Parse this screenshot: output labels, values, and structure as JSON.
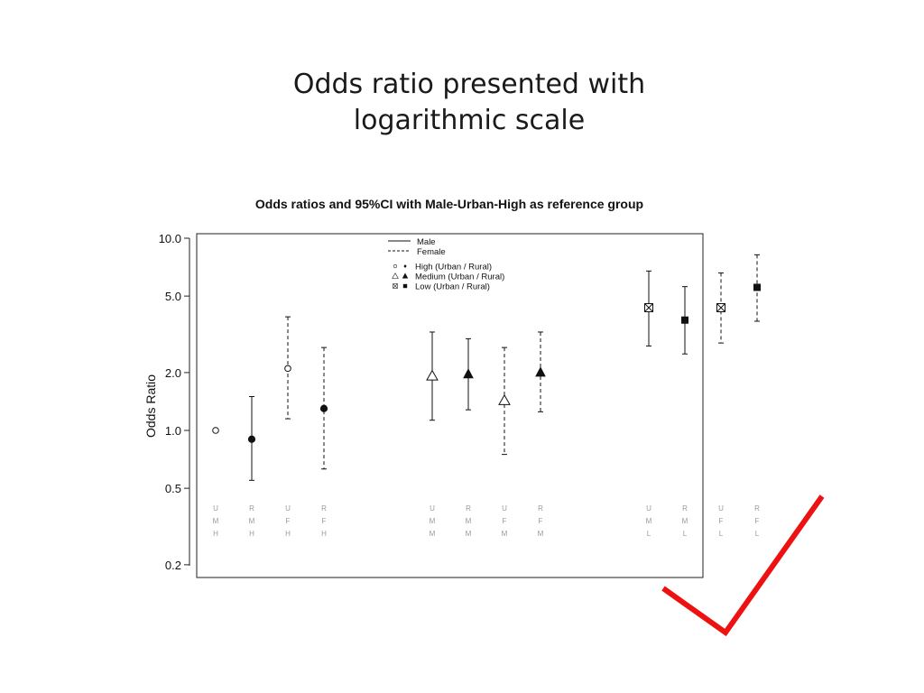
{
  "slide": {
    "title_line1": "Odds ratio presented with",
    "title_line2": "logarithmic scale"
  },
  "chart_data": {
    "type": "scatter",
    "title": "Odds ratios and 95%CI with Male-Urban-High as reference group",
    "xlabel": "",
    "ylabel": "Odds Ratio",
    "yscale": "log",
    "ylim": [
      0.2,
      10.0
    ],
    "yticks": [
      {
        "value": 10,
        "label": "10.0"
      },
      {
        "value": 5,
        "label": "5.0"
      },
      {
        "value": 2,
        "label": "2.0"
      },
      {
        "value": 1,
        "label": "1.0"
      },
      {
        "value": 0.5,
        "label": "0.5"
      },
      {
        "value": 0.2,
        "label": "0.2"
      }
    ],
    "grid": false,
    "legend": {
      "position": "top-center",
      "line_styles": [
        {
          "label": "Male",
          "style": "solid"
        },
        {
          "label": "Female",
          "style": "dashed"
        }
      ],
      "markers": [
        {
          "label": "High (Urban / Rural)",
          "urban": "circle-open",
          "rural": "diamond-filled"
        },
        {
          "label": "Medium (Urban / Rural)",
          "urban": "triangle-open",
          "rural": "triangle-filled"
        },
        {
          "label": "Low (Urban / Rural)",
          "urban": "square-x",
          "rural": "square-filled"
        }
      ]
    },
    "points": [
      {
        "codes": [
          "U",
          "M",
          "H"
        ],
        "group": 0,
        "or": 1.0,
        "lower": null,
        "upper": null,
        "line": "solid",
        "marker": "circle-open"
      },
      {
        "codes": [
          "R",
          "M",
          "H"
        ],
        "group": 0,
        "or": 0.9,
        "lower": 0.55,
        "upper": 1.5,
        "line": "solid",
        "marker": "circle-filled"
      },
      {
        "codes": [
          "U",
          "F",
          "H"
        ],
        "group": 0,
        "or": 2.1,
        "lower": 1.15,
        "upper": 3.9,
        "line": "dashed",
        "marker": "circle-open"
      },
      {
        "codes": [
          "R",
          "F",
          "H"
        ],
        "group": 0,
        "or": 1.3,
        "lower": 0.63,
        "upper": 2.7,
        "line": "dashed",
        "marker": "circle-filled"
      },
      {
        "codes": [
          "U",
          "M",
          "M"
        ],
        "group": 1,
        "or": 1.92,
        "lower": 1.13,
        "upper": 3.25,
        "line": "solid",
        "marker": "triangle-open"
      },
      {
        "codes": [
          "R",
          "M",
          "M"
        ],
        "group": 1,
        "or": 1.96,
        "lower": 1.28,
        "upper": 3.0,
        "line": "solid",
        "marker": "triangle-filled"
      },
      {
        "codes": [
          "U",
          "F",
          "M"
        ],
        "group": 1,
        "or": 1.43,
        "lower": 0.75,
        "upper": 2.7,
        "line": "dashed",
        "marker": "triangle-open"
      },
      {
        "codes": [
          "R",
          "F",
          "M"
        ],
        "group": 1,
        "or": 2.0,
        "lower": 1.25,
        "upper": 3.25,
        "line": "dashed",
        "marker": "triangle-filled"
      },
      {
        "codes": [
          "U",
          "M",
          "L"
        ],
        "group": 2,
        "or": 4.35,
        "lower": 2.75,
        "upper": 6.75,
        "line": "solid",
        "marker": "square-x"
      },
      {
        "codes": [
          "R",
          "M",
          "L"
        ],
        "group": 2,
        "or": 3.75,
        "lower": 2.5,
        "upper": 5.6,
        "line": "solid",
        "marker": "square-filled"
      },
      {
        "codes": [
          "U",
          "F",
          "L"
        ],
        "group": 2,
        "or": 4.35,
        "lower": 2.85,
        "upper": 6.6,
        "line": "dashed",
        "marker": "square-x"
      },
      {
        "codes": [
          "R",
          "F",
          "L"
        ],
        "group": 2,
        "or": 5.55,
        "lower": 3.7,
        "upper": 8.2,
        "line": "dashed",
        "marker": "square-filled"
      }
    ]
  },
  "annotation": {
    "mark": "red-checkmark",
    "color": "#ee1111"
  }
}
